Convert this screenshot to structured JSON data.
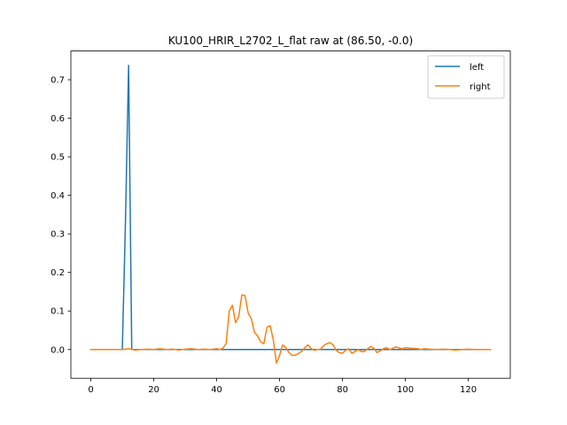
{
  "chart_data": {
    "type": "line",
    "title": "KU100_HRIR_L2702_L_flat raw at (86.50, -0.0)",
    "xlabel": "",
    "ylabel": "",
    "xlim": [
      -6.35,
      133.35
    ],
    "ylim": [
      -0.0745,
      0.7745
    ],
    "xticks": [
      0,
      20,
      40,
      60,
      80,
      100,
      120
    ],
    "xtick_labels": [
      "0",
      "20",
      "40",
      "60",
      "80",
      "100",
      "120"
    ],
    "yticks": [
      0.0,
      0.1,
      0.2,
      0.3,
      0.4,
      0.5,
      0.6,
      0.7
    ],
    "ytick_labels": [
      "0.0",
      "0.1",
      "0.2",
      "0.3",
      "0.4",
      "0.5",
      "0.6",
      "0.7"
    ],
    "grid": false,
    "legend_position": "top-right",
    "series": [
      {
        "name": "left",
        "color": "#1f77b4",
        "points": [
          [
            0,
            0
          ],
          [
            10,
            0
          ],
          [
            11,
            0.33
          ],
          [
            12,
            0.737
          ],
          [
            13,
            0
          ],
          [
            20,
            0
          ],
          [
            40,
            0
          ],
          [
            60,
            0
          ],
          [
            80,
            0
          ],
          [
            100,
            0
          ],
          [
            120,
            0
          ],
          [
            127,
            0
          ]
        ]
      },
      {
        "name": "right",
        "color": "#ff7f0e",
        "points": [
          [
            0,
            0
          ],
          [
            5,
            0
          ],
          [
            10,
            0
          ],
          [
            12,
            0.002
          ],
          [
            14,
            -0.001
          ],
          [
            16,
            0
          ],
          [
            18,
            0.001
          ],
          [
            20,
            0
          ],
          [
            22,
            0.002
          ],
          [
            24,
            0
          ],
          [
            26,
            0.001
          ],
          [
            28,
            -0.001
          ],
          [
            30,
            0.001
          ],
          [
            32,
            0.002
          ],
          [
            34,
            0
          ],
          [
            36,
            0.001
          ],
          [
            38,
            0
          ],
          [
            40,
            0.002
          ],
          [
            41,
            0
          ],
          [
            42,
            0.004
          ],
          [
            43,
            0.015
          ],
          [
            44,
            0.1
          ],
          [
            45,
            0.115
          ],
          [
            46,
            0.07
          ],
          [
            47,
            0.085
          ],
          [
            48,
            0.142
          ],
          [
            49,
            0.14
          ],
          [
            50,
            0.095
          ],
          [
            51,
            0.08
          ],
          [
            52,
            0.045
          ],
          [
            53,
            0.035
          ],
          [
            54,
            0.02
          ],
          [
            55,
            0.015
          ],
          [
            56,
            0.058
          ],
          [
            57,
            0.062
          ],
          [
            58,
            0.025
          ],
          [
            59,
            -0.035
          ],
          [
            60,
            -0.015
          ],
          [
            61,
            0.012
          ],
          [
            62,
            0.005
          ],
          [
            63,
            -0.008
          ],
          [
            64,
            -0.015
          ],
          [
            65,
            -0.015
          ],
          [
            66,
            -0.01
          ],
          [
            67,
            -0.005
          ],
          [
            68,
            0.005
          ],
          [
            69,
            0.012
          ],
          [
            70,
            0.003
          ],
          [
            71,
            -0.002
          ],
          [
            72,
            0
          ],
          [
            73,
            0.001
          ],
          [
            74,
            0.01
          ],
          [
            75,
            0.015
          ],
          [
            76,
            0.018
          ],
          [
            77,
            0.012
          ],
          [
            78,
            -0.002
          ],
          [
            79,
            -0.008
          ],
          [
            80,
            -0.01
          ],
          [
            81,
            -0.002
          ],
          [
            82,
            0.002
          ],
          [
            83,
            -0.01
          ],
          [
            84,
            -0.005
          ],
          [
            85,
            0
          ],
          [
            86,
            -0.005
          ],
          [
            87,
            -0.005
          ],
          [
            88,
            0.002
          ],
          [
            89,
            0.008
          ],
          [
            90,
            0.003
          ],
          [
            91,
            -0.008
          ],
          [
            92,
            -0.003
          ],
          [
            93,
            0.002
          ],
          [
            94,
            0.005
          ],
          [
            95,
            0
          ],
          [
            96,
            0.003
          ],
          [
            97,
            0.007
          ],
          [
            98,
            0.004
          ],
          [
            99,
            0.002
          ],
          [
            100,
            0.005
          ],
          [
            101,
            0.004
          ],
          [
            102,
            0.003
          ],
          [
            103,
            0.003
          ],
          [
            104,
            0.002
          ],
          [
            105,
            0
          ],
          [
            106,
            0.002
          ],
          [
            108,
            0.001
          ],
          [
            110,
            0
          ],
          [
            112,
            0.001
          ],
          [
            114,
            0
          ],
          [
            116,
            -0.001
          ],
          [
            118,
            0
          ],
          [
            120,
            0.001
          ],
          [
            122,
            0
          ],
          [
            124,
            0
          ],
          [
            127,
            0
          ]
        ]
      }
    ]
  }
}
